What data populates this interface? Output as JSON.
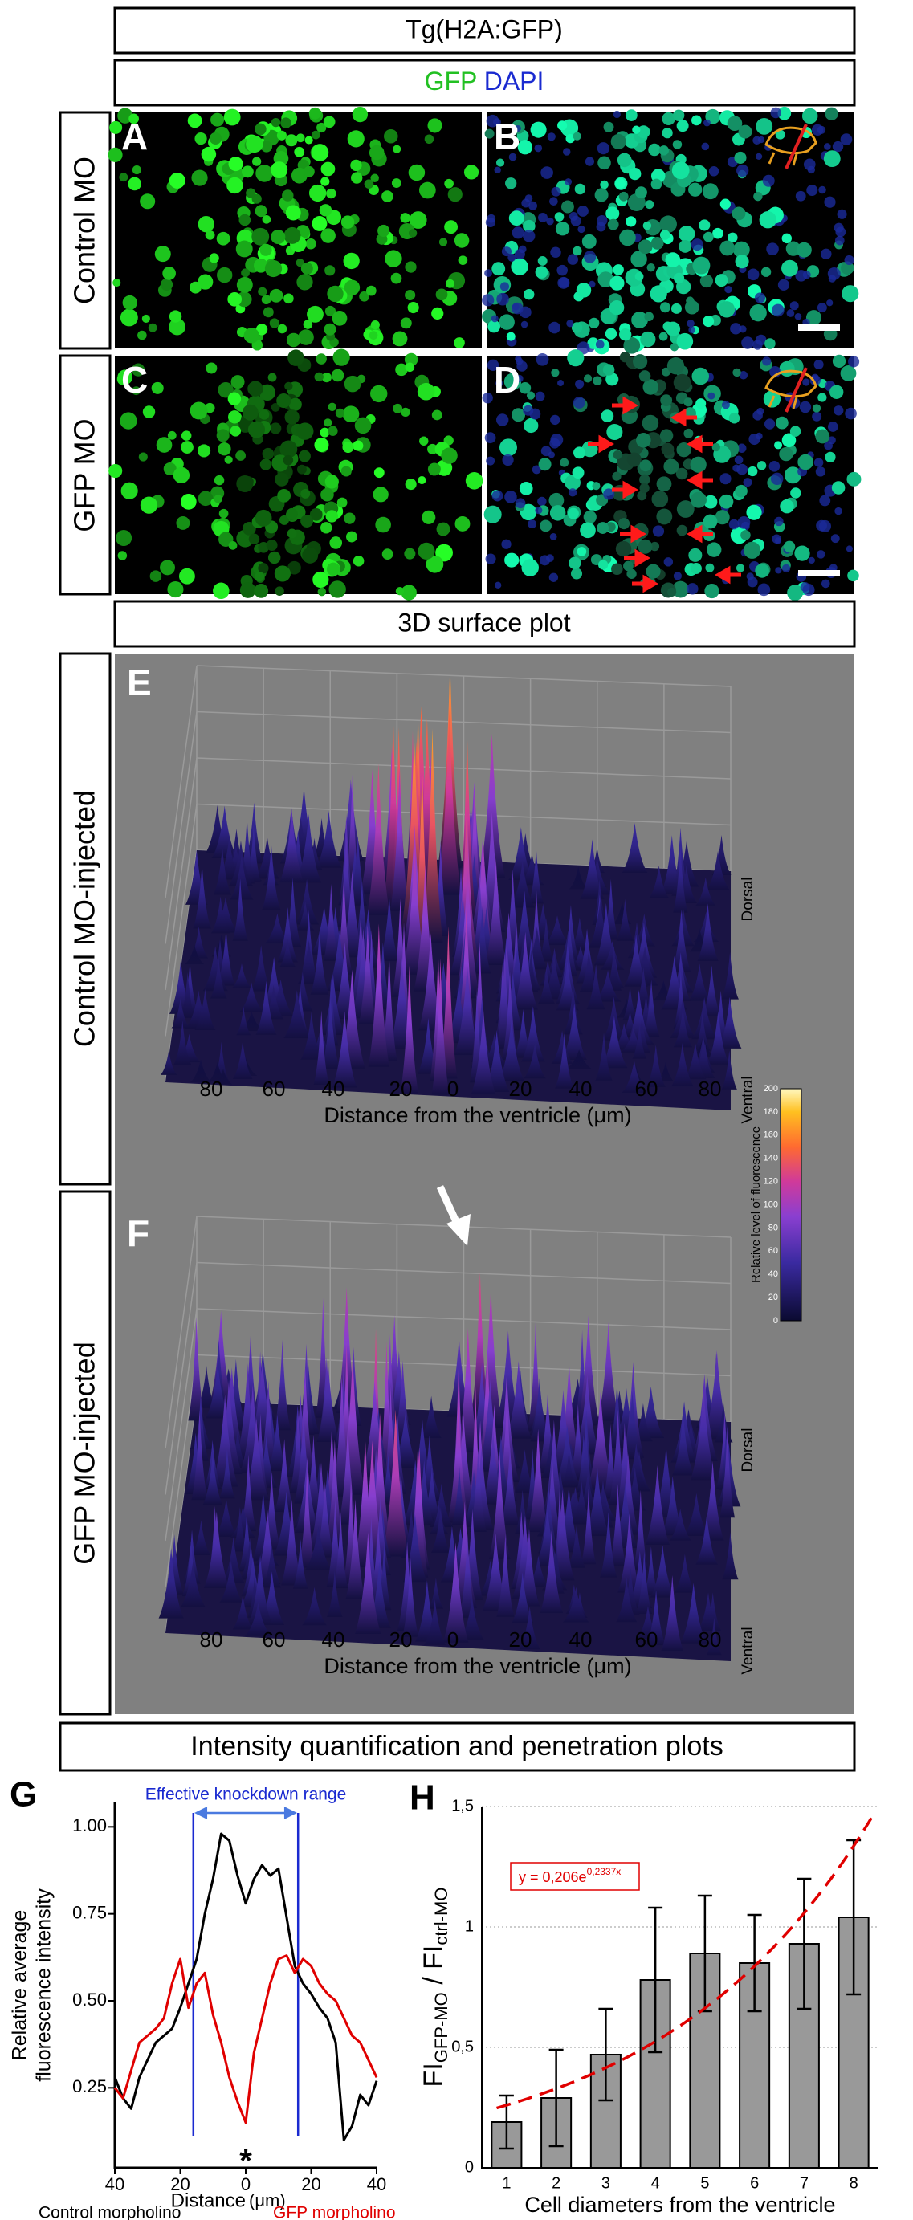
{
  "header": {
    "title": "Tg(H2A:GFP)",
    "stain_1": "GFP",
    "stain_2": "DAPI"
  },
  "rows": [
    {
      "label": "Control MO"
    },
    {
      "label": "GFP MO"
    }
  ],
  "panels": [
    "A",
    "B",
    "C",
    "D"
  ],
  "surface": {
    "title": "3D surface plot",
    "plots": [
      {
        "letter": "E",
        "label": "Control MO-injected"
      },
      {
        "letter": "F",
        "label": "GFP MO-injected"
      }
    ],
    "axis_label": "Distance from the ventricle (μm)",
    "ticks": [
      80,
      60,
      40,
      20,
      0,
      20,
      40,
      60,
      80
    ],
    "dorsal": "Dorsal",
    "ventral": "Ventral",
    "colorbar": {
      "label": "Relative level of fluorescence",
      "ticks": [
        0,
        20,
        40,
        60,
        80,
        100,
        120,
        140,
        160,
        180,
        200
      ]
    }
  },
  "quant_title": "Intensity quantification and penetration plots",
  "chart_data": [
    {
      "type": "line",
      "panel": "G",
      "annotation": "Effective knockdown range",
      "ylabel": [
        "Relative average",
        "fluorescence intensity"
      ],
      "xlabel": "Distance",
      "xunit": "(μm)",
      "x": [
        -40,
        -37.5,
        -35,
        -32.5,
        -30,
        -27.5,
        -25,
        -22.5,
        -20,
        -17.5,
        -15,
        -12.5,
        -10,
        -7.5,
        -5,
        -2.5,
        0,
        2.5,
        5,
        7.5,
        10,
        12.5,
        15,
        17.5,
        20,
        22.5,
        25,
        27.5,
        30,
        32.5,
        35,
        37.5,
        40
      ],
      "series": [
        {
          "name": "Control morpholino",
          "color": "#000000",
          "values": [
            0.28,
            0.22,
            0.19,
            0.28,
            0.33,
            0.38,
            0.4,
            0.42,
            0.48,
            0.55,
            0.62,
            0.75,
            0.85,
            0.98,
            0.96,
            0.86,
            0.78,
            0.85,
            0.89,
            0.86,
            0.88,
            0.74,
            0.6,
            0.55,
            0.52,
            0.48,
            0.45,
            0.38,
            0.1,
            0.14,
            0.23,
            0.2,
            0.27
          ]
        },
        {
          "name": "GFP morpholino",
          "color": "#e00000",
          "values": [
            0.25,
            0.22,
            0.3,
            0.38,
            0.4,
            0.42,
            0.45,
            0.55,
            0.62,
            0.48,
            0.55,
            0.58,
            0.46,
            0.38,
            0.28,
            0.21,
            0.15,
            0.35,
            0.45,
            0.55,
            0.62,
            0.63,
            0.58,
            0.62,
            0.6,
            0.55,
            0.52,
            0.5,
            0.45,
            0.4,
            0.38,
            0.33,
            0.28
          ]
        }
      ],
      "xlim": [
        -40,
        40
      ],
      "xticks": [
        {
          "value": -40,
          "label": "40"
        },
        {
          "value": -20,
          "label": "20"
        },
        0,
        20,
        40
      ],
      "ylim": [
        0.02,
        1.07
      ],
      "yticks": [
        0.25,
        {
          "value": 0.5,
          "label": "0.50"
        },
        0.75,
        {
          "value": 1,
          "label": "1.00"
        }
      ]
    },
    {
      "type": "bar",
      "panel": "H",
      "categories": [
        "1",
        "2",
        "3",
        "4",
        "5",
        "6",
        "7",
        "8"
      ],
      "values": [
        0.19,
        0.29,
        0.47,
        0.78,
        0.89,
        0.85,
        0.93,
        1.04
      ],
      "errors": [
        0.11,
        0.2,
        0.19,
        0.3,
        0.24,
        0.2,
        0.27,
        0.32
      ],
      "color": "#999999",
      "xlabel": "Cell diameters from the ventricle",
      "ylabel": {
        "main1": "FI",
        "sub1": "GFP-MO",
        "main2": " / FI",
        "sub2": "ctrl-MO"
      },
      "trendline": {
        "label_base": "y = 0,206e",
        "label_exp": "0,2337x",
        "a": 0.206,
        "b": 0.2337,
        "color": "#e00000"
      },
      "ylim": [
        0,
        1.5
      ],
      "yticks": [
        0,
        {
          "value": 0.5,
          "label": "0,5"
        },
        1,
        {
          "value": 1.5,
          "label": "1,5"
        }
      ],
      "grid": true
    }
  ]
}
